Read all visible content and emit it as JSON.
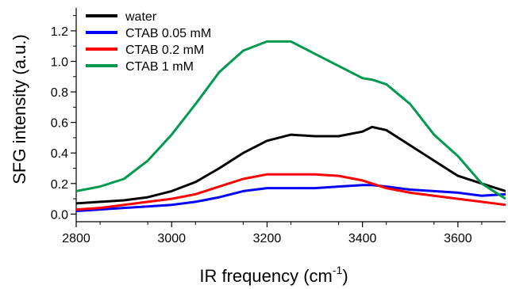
{
  "chart_data": {
    "type": "line",
    "title": "",
    "xlabel": "IR frequency (cm",
    "xlabel_superscript": "-1",
    "xlabel_suffix": ")",
    "ylabel": "SFG intensity (a.u.)",
    "xlim": [
      2800,
      3700
    ],
    "ylim": [
      -0.05,
      1.35
    ],
    "x_ticks": [
      2800,
      3000,
      3200,
      3400,
      3600
    ],
    "y_ticks": [
      0.0,
      0.2,
      0.4,
      0.6,
      0.8,
      1.0,
      1.2
    ],
    "x_tick_labels": [
      "2800",
      "3000",
      "3200",
      "3400",
      "3600"
    ],
    "y_tick_labels": [
      "0.0",
      "0.2",
      "0.4",
      "0.6",
      "0.8",
      "1.0",
      "1.2"
    ],
    "grid": false,
    "legend_position": "top-left",
    "x": [
      2800,
      2850,
      2900,
      2950,
      3000,
      3050,
      3100,
      3150,
      3200,
      3250,
      3300,
      3350,
      3400,
      3420,
      3450,
      3500,
      3550,
      3600,
      3650,
      3700
    ],
    "series": [
      {
        "name": "water",
        "color": "#000000",
        "values": [
          0.07,
          0.08,
          0.09,
          0.11,
          0.15,
          0.21,
          0.3,
          0.4,
          0.48,
          0.52,
          0.51,
          0.51,
          0.54,
          0.57,
          0.55,
          0.45,
          0.35,
          0.25,
          0.2,
          0.15
        ]
      },
      {
        "name": "CTAB 0.05 mM",
        "color": "#0000ff",
        "values": [
          0.02,
          0.03,
          0.04,
          0.05,
          0.06,
          0.08,
          0.11,
          0.15,
          0.17,
          0.17,
          0.17,
          0.18,
          0.19,
          0.19,
          0.18,
          0.16,
          0.15,
          0.14,
          0.12,
          0.13
        ]
      },
      {
        "name": "CTAB 0.2 mM",
        "color": "#ff0000",
        "values": [
          0.03,
          0.04,
          0.06,
          0.08,
          0.1,
          0.13,
          0.18,
          0.23,
          0.26,
          0.26,
          0.26,
          0.25,
          0.22,
          0.2,
          0.17,
          0.14,
          0.12,
          0.1,
          0.08,
          0.06
        ]
      },
      {
        "name": "CTAB 1 mM",
        "color": "#009a4e",
        "values": [
          0.15,
          0.18,
          0.23,
          0.35,
          0.52,
          0.72,
          0.93,
          1.07,
          1.13,
          1.13,
          1.05,
          0.97,
          0.89,
          0.88,
          0.85,
          0.72,
          0.52,
          0.38,
          0.2,
          0.1
        ]
      }
    ]
  }
}
